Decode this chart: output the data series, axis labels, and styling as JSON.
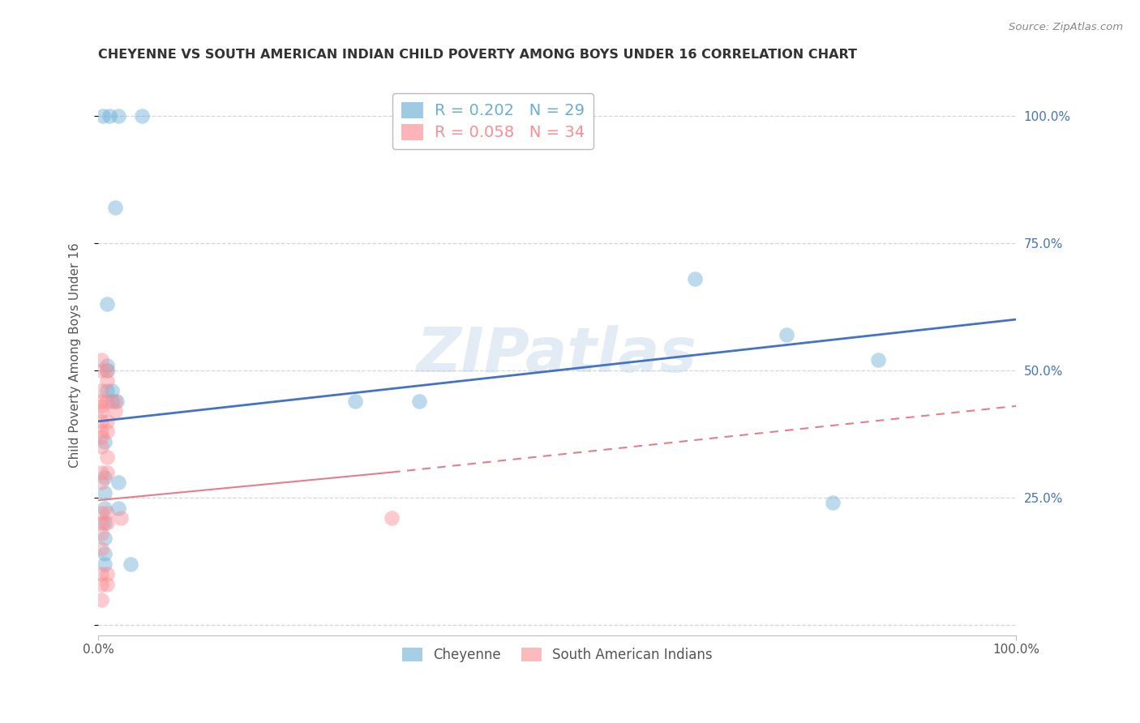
{
  "title": "CHEYENNE VS SOUTH AMERICAN INDIAN CHILD POVERTY AMONG BOYS UNDER 16 CORRELATION CHART",
  "source": "Source: ZipAtlas.com",
  "ylabel": "Child Poverty Among Boys Under 16",
  "watermark": "ZIPatlas",
  "legend_entries": [
    {
      "label": "R = 0.202   N = 29",
      "color": "#6baed6"
    },
    {
      "label": "R = 0.058   N = 34",
      "color": "#fc8d94"
    }
  ],
  "cheyenne_color": "#6baed6",
  "sa_indian_color": "#fc8d94",
  "background_color": "#ffffff",
  "grid_color": "#cccccc",
  "xlim": [
    0,
    1
  ],
  "ylim": [
    -0.02,
    1.08
  ],
  "cheyenne_scatter": [
    [
      0.005,
      1.0
    ],
    [
      0.012,
      1.0
    ],
    [
      0.022,
      1.0
    ],
    [
      0.048,
      1.0
    ],
    [
      0.018,
      0.82
    ],
    [
      0.01,
      0.63
    ],
    [
      0.01,
      0.51
    ],
    [
      0.01,
      0.5
    ],
    [
      0.01,
      0.46
    ],
    [
      0.015,
      0.46
    ],
    [
      0.015,
      0.44
    ],
    [
      0.02,
      0.44
    ],
    [
      0.28,
      0.44
    ],
    [
      0.35,
      0.44
    ],
    [
      0.65,
      0.68
    ],
    [
      0.75,
      0.57
    ],
    [
      0.85,
      0.52
    ],
    [
      0.8,
      0.24
    ],
    [
      0.007,
      0.36
    ],
    [
      0.007,
      0.29
    ],
    [
      0.007,
      0.26
    ],
    [
      0.007,
      0.23
    ],
    [
      0.007,
      0.2
    ],
    [
      0.007,
      0.17
    ],
    [
      0.007,
      0.14
    ],
    [
      0.007,
      0.12
    ],
    [
      0.022,
      0.28
    ],
    [
      0.022,
      0.23
    ],
    [
      0.035,
      0.12
    ]
  ],
  "sa_indian_scatter": [
    [
      0.003,
      0.52
    ],
    [
      0.003,
      0.5
    ],
    [
      0.003,
      0.46
    ],
    [
      0.003,
      0.44
    ],
    [
      0.003,
      0.43
    ],
    [
      0.003,
      0.42
    ],
    [
      0.003,
      0.4
    ],
    [
      0.003,
      0.38
    ],
    [
      0.003,
      0.37
    ],
    [
      0.003,
      0.35
    ],
    [
      0.003,
      0.3
    ],
    [
      0.003,
      0.28
    ],
    [
      0.003,
      0.22
    ],
    [
      0.003,
      0.2
    ],
    [
      0.003,
      0.18
    ],
    [
      0.003,
      0.15
    ],
    [
      0.003,
      0.1
    ],
    [
      0.003,
      0.08
    ],
    [
      0.003,
      0.05
    ],
    [
      0.01,
      0.5
    ],
    [
      0.01,
      0.48
    ],
    [
      0.01,
      0.44
    ],
    [
      0.01,
      0.4
    ],
    [
      0.01,
      0.38
    ],
    [
      0.01,
      0.33
    ],
    [
      0.01,
      0.3
    ],
    [
      0.01,
      0.22
    ],
    [
      0.01,
      0.2
    ],
    [
      0.01,
      0.1
    ],
    [
      0.01,
      0.08
    ],
    [
      0.018,
      0.44
    ],
    [
      0.018,
      0.42
    ],
    [
      0.025,
      0.21
    ],
    [
      0.32,
      0.21
    ]
  ],
  "cheyenne_line": [
    [
      0.0,
      0.4
    ],
    [
      1.0,
      0.6
    ]
  ],
  "sa_indian_line_solid": [
    [
      0.0,
      0.245
    ],
    [
      0.32,
      0.3
    ]
  ],
  "sa_indian_line_dashed": [
    [
      0.32,
      0.3
    ],
    [
      1.0,
      0.43
    ]
  ],
  "ytick_positions": [
    0.0,
    0.25,
    0.5,
    0.75,
    1.0
  ],
  "ytick_labels_right": [
    "",
    "25.0%",
    "50.0%",
    "75.0%",
    "100.0%"
  ],
  "xtick_positions": [
    0.0,
    1.0
  ],
  "xtick_labels": [
    "0.0%",
    "100.0%"
  ]
}
